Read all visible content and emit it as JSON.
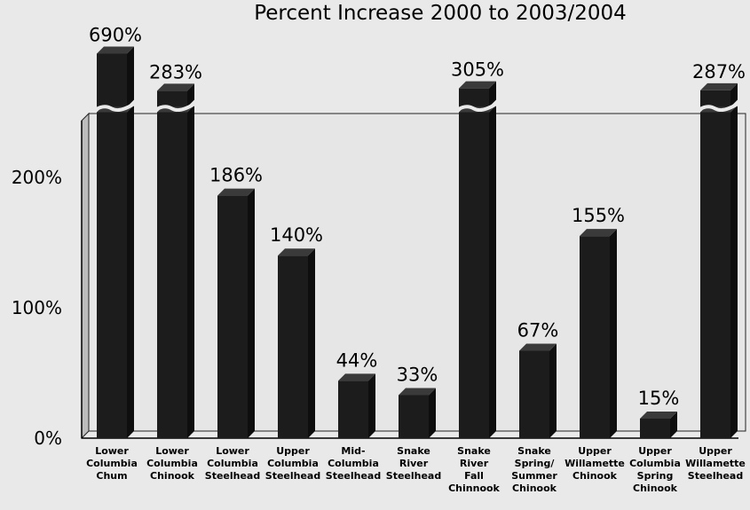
{
  "chart_data": {
    "type": "bar",
    "title": "Percent Increase 2000 to 2003/2004",
    "ylim": [
      0,
      250
    ],
    "yticks": [
      0,
      100,
      200
    ],
    "ytick_labels": [
      "0%",
      "100%",
      "200%"
    ],
    "categories": [
      [
        "Lower",
        "Columbia",
        "Chum"
      ],
      [
        "Lower",
        "Columbia",
        "Chinook"
      ],
      [
        "Lower",
        "Columbia",
        "Steelhead"
      ],
      [
        "Upper",
        "Columbia",
        "Steelhead"
      ],
      [
        "Mid-",
        "Columbia",
        "Steelhead"
      ],
      [
        "Snake",
        "River",
        "Steelhead"
      ],
      [
        "Snake",
        "River",
        "Fall",
        "Chinnook"
      ],
      [
        "Snake",
        "Spring/",
        "Summer",
        "Chinook"
      ],
      [
        "Upper",
        "Willamette",
        "Chinook"
      ],
      [
        "Upper",
        "Columbia",
        "Spring",
        "Chinook"
      ],
      [
        "Upper",
        "Willamette",
        "Steelhead"
      ]
    ],
    "values": [
      690,
      283,
      186,
      140,
      44,
      33,
      305,
      67,
      155,
      15,
      287
    ],
    "data_labels": [
      "690%",
      "283%",
      "186%",
      "140%",
      "44%",
      "33%",
      "305%",
      "67%",
      "155%",
      "15%",
      "287%"
    ],
    "axis_break": true,
    "grid": true,
    "bar_color": "#1c1c1c",
    "background_color": "#e9e9e9"
  }
}
